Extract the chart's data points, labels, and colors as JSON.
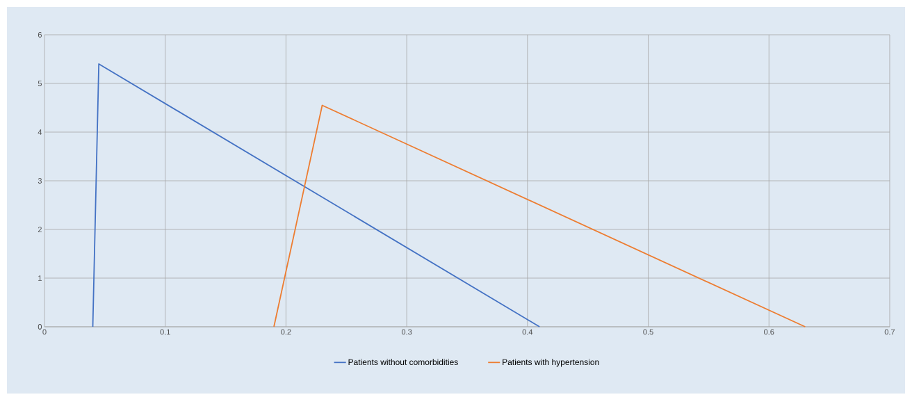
{
  "chart_data": {
    "type": "line",
    "series": [
      {
        "name": "Patients without comorbidities",
        "color": "#4472c4",
        "x": [
          0.04,
          0.045,
          0.41
        ],
        "values": [
          0,
          5.4,
          0
        ]
      },
      {
        "name": "Patients with hypertension",
        "color": "#ed7d31",
        "x": [
          0.19,
          0.23,
          0.63
        ],
        "values": [
          0,
          4.55,
          0
        ]
      }
    ],
    "xlim": [
      0,
      0.7
    ],
    "ylim": [
      0,
      6
    ],
    "xticks": [
      0,
      0.1,
      0.2,
      0.3,
      0.4,
      0.5,
      0.6,
      0.7
    ],
    "yticks": [
      0,
      1,
      2,
      3,
      4,
      5,
      6
    ],
    "grid": true,
    "legend": "bottom",
    "marker": "none",
    "line_style": "solid"
  }
}
